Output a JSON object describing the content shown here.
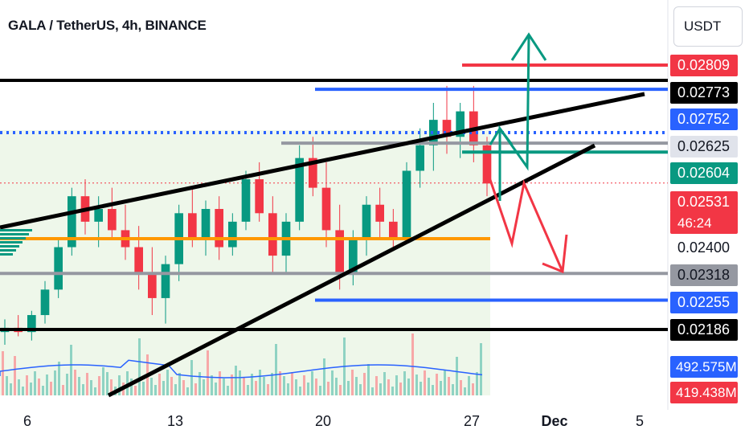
{
  "title": "GALA / TetherUS, 4h, BINANCE",
  "currency_button": "USDT",
  "price_tags": [
    {
      "label": "0.02809",
      "bg": "#f23645",
      "fg": "#ffffff"
    },
    {
      "label": "0.02773",
      "bg": "#000000",
      "fg": "#ffffff"
    },
    {
      "label": "0.02752",
      "bg": "#2962ff",
      "fg": "#ffffff"
    },
    {
      "label": "0.02625",
      "bg": "#e0e3eb",
      "fg": "#131722"
    },
    {
      "label": "0.02604",
      "bg": "#089981",
      "fg": "#ffffff"
    },
    {
      "label": "0.02531",
      "bg": "#f23645",
      "fg": "#ffffff"
    },
    {
      "label": "0.02400",
      "bg": "#ffffff",
      "fg": "#131722"
    },
    {
      "label": "0.02318",
      "bg": "#9598a1",
      "fg": "#131722"
    },
    {
      "label": "0.02255",
      "bg": "#2962ff",
      "fg": "#ffffff"
    },
    {
      "label": "0.02186",
      "bg": "#000000",
      "fg": "#ffffff"
    }
  ],
  "countdown": "46:24",
  "volume_tags": [
    {
      "label": "492.575M",
      "bg": "#2962ff"
    },
    {
      "label": "419.438M",
      "bg": "#f23645"
    }
  ],
  "x_labels": [
    "6",
    "13",
    "20",
    "27",
    "Dec",
    "5"
  ],
  "chart_data": {
    "type": "candlestick",
    "title": "GALA / TetherUS, 4h, BINANCE",
    "y_ticks": [
      0.02809,
      0.02773,
      0.02752,
      0.02625,
      0.02604,
      0.02531,
      0.024,
      0.02318,
      0.02255,
      0.02186
    ],
    "x_ticks": [
      "6",
      "13",
      "20",
      "27",
      "Dec",
      "5"
    ],
    "last_price": 0.02531,
    "candles_ohlc_approx": [
      [
        0.0218,
        0.0221,
        0.0215,
        0.0219
      ],
      [
        0.0219,
        0.0222,
        0.0217,
        0.0218
      ],
      [
        0.0218,
        0.0223,
        0.0216,
        0.0222
      ],
      [
        0.0222,
        0.023,
        0.022,
        0.0228
      ],
      [
        0.0228,
        0.024,
        0.0226,
        0.0238
      ],
      [
        0.0238,
        0.0252,
        0.0236,
        0.025
      ],
      [
        0.025,
        0.0254,
        0.0241,
        0.0244
      ],
      [
        0.0244,
        0.025,
        0.0238,
        0.0247
      ],
      [
        0.0247,
        0.0252,
        0.024,
        0.0242
      ],
      [
        0.0242,
        0.0248,
        0.0235,
        0.0238
      ],
      [
        0.0238,
        0.0243,
        0.0228,
        0.0232
      ],
      [
        0.0232,
        0.0238,
        0.0222,
        0.0226
      ],
      [
        0.0226,
        0.0236,
        0.022,
        0.0234
      ],
      [
        0.0234,
        0.0248,
        0.023,
        0.0246
      ],
      [
        0.0246,
        0.0252,
        0.0238,
        0.024
      ],
      [
        0.024,
        0.0249,
        0.0236,
        0.0247
      ],
      [
        0.0247,
        0.025,
        0.0235,
        0.0238
      ],
      [
        0.0238,
        0.0246,
        0.0236,
        0.0244
      ],
      [
        0.0244,
        0.0256,
        0.0242,
        0.0254
      ],
      [
        0.0254,
        0.0258,
        0.0244,
        0.0246
      ],
      [
        0.0246,
        0.025,
        0.0232,
        0.0236
      ],
      [
        0.0236,
        0.0246,
        0.0232,
        0.0244
      ],
      [
        0.0244,
        0.0262,
        0.0242,
        0.0259
      ],
      [
        0.0259,
        0.0264,
        0.025,
        0.0252
      ],
      [
        0.0252,
        0.0258,
        0.0238,
        0.0242
      ],
      [
        0.0242,
        0.0248,
        0.0228,
        0.0232
      ],
      [
        0.0232,
        0.0242,
        0.0229,
        0.024
      ],
      [
        0.024,
        0.025,
        0.0236,
        0.0248
      ],
      [
        0.0248,
        0.0252,
        0.024,
        0.0244
      ],
      [
        0.0244,
        0.0247,
        0.0238,
        0.024
      ],
      [
        0.024,
        0.0258,
        0.0239,
        0.0256
      ],
      [
        0.0256,
        0.0266,
        0.0252,
        0.0262
      ],
      [
        0.0262,
        0.0272,
        0.0256,
        0.0268
      ],
      [
        0.0268,
        0.0276,
        0.026,
        0.0264
      ],
      [
        0.0264,
        0.0272,
        0.0259,
        0.027
      ],
      [
        0.027,
        0.0276,
        0.0258,
        0.0262
      ],
      [
        0.0262,
        0.0264,
        0.025,
        0.0253
      ]
    ],
    "volume_ma_label": "492.575M",
    "volume_last_label": "419.438M",
    "drawings": [
      {
        "kind": "horizontal",
        "color": "#f23645",
        "price": 0.02809
      },
      {
        "kind": "horizontal",
        "color": "#000000",
        "price": 0.02773
      },
      {
        "kind": "horizontal",
        "color": "#2962ff",
        "price": 0.02752
      },
      {
        "kind": "horizontal",
        "color": "#9598a1",
        "price": 0.02625
      },
      {
        "kind": "horizontal",
        "color": "#089981",
        "price": 0.02604
      },
      {
        "kind": "horizontal",
        "color": "#ff9800",
        "price": 0.024
      },
      {
        "kind": "horizontal",
        "color": "#9598a1",
        "price": 0.02318
      },
      {
        "kind": "horizontal",
        "color": "#2962ff",
        "price": 0.02255
      },
      {
        "kind": "horizontal",
        "color": "#000000",
        "price": 0.02186
      },
      {
        "kind": "trendline",
        "color": "#000000",
        "note": "upper channel"
      },
      {
        "kind": "trendline",
        "color": "#000000",
        "note": "lower channel"
      },
      {
        "kind": "arrow-path",
        "color": "#089981",
        "direction": "up"
      },
      {
        "kind": "arrow-path",
        "color": "#f23645",
        "direction": "down"
      }
    ]
  }
}
